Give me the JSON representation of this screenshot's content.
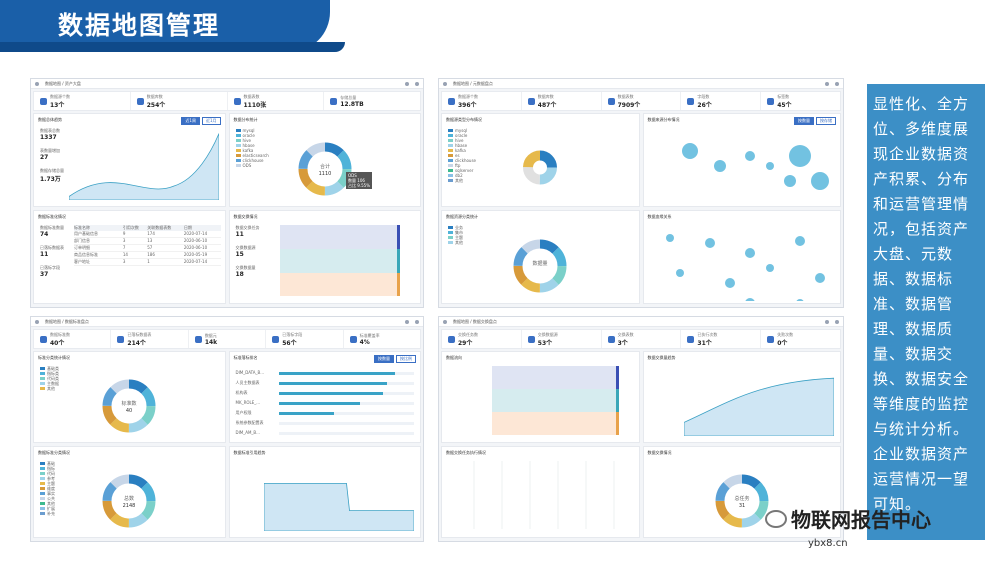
{
  "header": {
    "title": "数据地图管理"
  },
  "side_text": "显性化、全方位、多维度展现企业数据资产积累、分布和运营管理情况，包括资产大盘、元数据、数据标准、数据管理、数据质量、数据交换、数据安全等维度的监控与统计分析。企业数据资产运营情况一望可知。",
  "watermark": {
    "name": "物联网报告中心",
    "url": "ybx8.cn"
  },
  "shots": [
    {
      "breadcrumb": "数据地图 / 资产大盘",
      "kpis": [
        {
          "label": "数据源个数",
          "value": "13个"
        },
        {
          "label": "数据库数",
          "value": "254个"
        },
        {
          "label": "数据表数",
          "value": "1110张"
        },
        {
          "label": "存储总量",
          "value": "12.8TB"
        }
      ],
      "cards": [
        {
          "title": "数据总体趋势",
          "tabs": [
            "近1周",
            "近1月"
          ],
          "stats": [
            [
              "数据表总数",
              "1337"
            ],
            [
              "表数量增加",
              "27"
            ],
            [
              "数据存储总量",
              "1.73万"
            ]
          ]
        },
        {
          "title": "数据分布统计",
          "legend": [
            "mysql",
            "oracle",
            "hive",
            "hbase",
            "kafka",
            "elasticsearch",
            "clickhouse",
            "ODS"
          ],
          "donut_center": "合计",
          "donut_value": "1110",
          "tooltip": [
            "ODS",
            "数量 106",
            "占比 9.55%"
          ]
        },
        {
          "title": "数据标准化情况",
          "stats": [
            [
              "数据标准数量",
              "74"
            ],
            [
              "已落标数据表",
              "11"
            ],
            [
              "已落标字段",
              "37"
            ]
          ],
          "cols": [
            "标准名称",
            "引用次数",
            "关联数据表数",
            "日期"
          ],
          "rows": [
            [
              "用户基础信息",
              "9",
              "174",
              "2020-07-14"
            ],
            [
              "部门信息",
              "3",
              "13",
              "2020-06-10"
            ],
            [
              "订单明细",
              "7",
              "57",
              "2020-06-10"
            ],
            [
              "商品信息标准",
              "14",
              "186",
              "2020-05-19"
            ],
            [
              "客户地址",
              "3",
              "1",
              "2020-07-14"
            ]
          ]
        },
        {
          "title": "数据交换情况",
          "stats": [
            [
              "数据交换任务",
              "11"
            ],
            [
              "交换数据源",
              "15"
            ],
            [
              "交换数据量",
              "18"
            ]
          ]
        }
      ]
    },
    {
      "breadcrumb": "数据地图 / 元数据盘点",
      "kpis": [
        {
          "label": "数据源个数",
          "value": "396个"
        },
        {
          "label": "数据库数",
          "value": "487个"
        },
        {
          "label": "数据表数",
          "value": "7909个"
        },
        {
          "label": "字段数",
          "value": "26个"
        },
        {
          "label": "标签数",
          "value": "45个"
        }
      ],
      "cards": [
        {
          "title": "数据源类型分布情况",
          "legend": [
            "mysql",
            "oracle",
            "hive",
            "hbase",
            "kafka",
            "es",
            "clickhouse",
            "ftp",
            "sqlserver",
            "db2",
            "其他"
          ]
        },
        {
          "title": "数据来源分布情况",
          "tabs": [
            "按数量",
            "按存储"
          ]
        },
        {
          "title": "数据资源分类统计",
          "donut_center": "数据量",
          "legend": [
            "业务",
            "集市",
            "主题",
            "其他"
          ]
        },
        {
          "title": "数据血缘关系"
        }
      ]
    },
    {
      "breadcrumb": "数据地图 / 数据标准盘点",
      "kpis": [
        {
          "label": "数据标准数",
          "value": "40个"
        },
        {
          "label": "已落标数据表",
          "value": "214个"
        },
        {
          "label": "数据元",
          "value": "14k"
        },
        {
          "label": "已落标字段",
          "value": "56个"
        },
        {
          "label": "标准覆盖率",
          "value": "4%"
        }
      ],
      "cards": [
        {
          "title": "标准分类统计情况",
          "donut_center": "标准数",
          "donut_value": "40",
          "legend": [
            "基础类",
            "指标类",
            "代码类",
            "主数据",
            "其他"
          ]
        },
        {
          "title": "标准落标排名",
          "tabs": [
            "按数量",
            "按比例"
          ],
          "bars": [
            [
              "DIM_DATA_B...",
              86
            ],
            [
              "人员主数据表",
              80
            ],
            [
              "机构表",
              77
            ],
            [
              "MK_ROLE_...",
              60
            ],
            [
              "用户权限",
              41
            ],
            [
              "系统参数配置表",
              0
            ],
            [
              "DIM_AM_B...",
              0
            ]
          ]
        },
        {
          "title": "数据标准分类情况",
          "donut_center": "总数",
          "donut_value": "2148",
          "legend": [
            "基础",
            "指标",
            "代码",
            "参考",
            "主题",
            "维度",
            "事实",
            "公共",
            "其他",
            "扩展",
            "补充"
          ]
        },
        {
          "title": "数据标准引用趋势"
        }
      ]
    },
    {
      "breadcrumb": "数据地图 / 数据交换盘点",
      "kpis": [
        {
          "label": "交换任务数",
          "value": "29个"
        },
        {
          "label": "交换数据源",
          "value": "53个"
        },
        {
          "label": "交换表数",
          "value": "3个"
        },
        {
          "label": "已执行次数",
          "value": "31个"
        },
        {
          "label": "失败次数",
          "value": "0个"
        }
      ],
      "cards": [
        {
          "title": "数据流向"
        },
        {
          "title": "数据交换量趋势"
        },
        {
          "title": "数据交换任务执行情况"
        },
        {
          "title": "数据交换情况",
          "donut_center": "总任务",
          "donut_value": "31"
        }
      ]
    }
  ]
}
